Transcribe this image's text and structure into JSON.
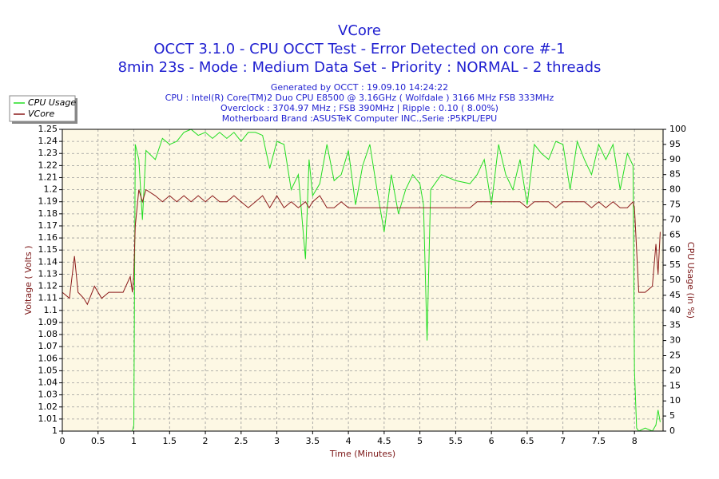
{
  "chart_data": {
    "type": "line",
    "title": "VCore",
    "title_lines": [
      "OCCT 3.1.0 - CPU OCCT Test - Error Detected on core #-1",
      "8min 23s - Mode : Medium Data Set - Priority : NORMAL - 2 threads"
    ],
    "subtitle": [
      "Generated by OCCT : 19.09.10 14:24:22",
      "CPU : Intel(R) Core(TM)2 Duo CPU E8500 @ 3.16GHz ( Wolfdale ) 3166 MHz FSB 333MHz",
      "Overclock : 3704.97 MHz ; FSB 390MHz | Ripple : 0.10 ( 8.00%)",
      "Motherboard Brand :ASUSTeK Computer INC.,Serie :P5KPL/EPU"
    ],
    "xlabel": "Time (Minutes)",
    "ylabel": "Voltage ( Volts )",
    "y2label": "CPU Usage (in %)",
    "x": [
      0,
      0.1,
      0.17,
      0.22,
      0.3,
      0.35,
      0.45,
      0.55,
      0.65,
      0.75,
      0.85,
      0.95,
      0.98,
      1.0,
      1.02,
      1.07,
      1.12,
      1.17,
      1.3,
      1.4,
      1.5,
      1.6,
      1.7,
      1.8,
      1.9,
      2.0,
      2.1,
      2.2,
      2.3,
      2.4,
      2.5,
      2.6,
      2.7,
      2.8,
      2.9,
      3.0,
      3.1,
      3.2,
      3.3,
      3.4,
      3.45,
      3.5,
      3.6,
      3.7,
      3.8,
      3.9,
      4.0,
      4.1,
      4.2,
      4.3,
      4.4,
      4.5,
      4.6,
      4.7,
      4.8,
      4.9,
      5.0,
      5.05,
      5.1,
      5.15,
      5.3,
      5.5,
      5.7,
      5.8,
      5.9,
      6.0,
      6.1,
      6.2,
      6.3,
      6.4,
      6.5,
      6.6,
      6.7,
      6.8,
      6.9,
      7.0,
      7.1,
      7.2,
      7.3,
      7.4,
      7.5,
      7.6,
      7.7,
      7.8,
      7.9,
      7.98,
      8.0,
      8.03,
      8.06,
      8.15,
      8.25,
      8.3,
      8.33,
      8.36
    ],
    "series": [
      {
        "name": "CPU Usage",
        "color": "#22dd22",
        "axis": "y2",
        "values": [
          0,
          0,
          0,
          0,
          0,
          0,
          0,
          0,
          0,
          0,
          0,
          0,
          0,
          2,
          95,
          90,
          70,
          93,
          90,
          97,
          95,
          96,
          99,
          100,
          98,
          99,
          97,
          99,
          97,
          99,
          96,
          99,
          99,
          98,
          87,
          96,
          95,
          80,
          85,
          57,
          90,
          78,
          82,
          95,
          83,
          85,
          93,
          75,
          88,
          95,
          80,
          66,
          85,
          72,
          80,
          85,
          82,
          75,
          30,
          80,
          85,
          83,
          82,
          85,
          90,
          75,
          95,
          85,
          80,
          90,
          75,
          95,
          92,
          90,
          96,
          95,
          80,
          96,
          90,
          85,
          95,
          90,
          95,
          80,
          92,
          88,
          20,
          1,
          0,
          1,
          0,
          2,
          7,
          3
        ]
      },
      {
        "name": "VCore",
        "color": "#8b1a1a",
        "values": [
          1.115,
          1.11,
          1.145,
          1.115,
          1.11,
          1.105,
          1.12,
          1.11,
          1.115,
          1.115,
          1.115,
          1.128,
          1.115,
          1.13,
          1.17,
          1.2,
          1.19,
          1.2,
          1.195,
          1.19,
          1.195,
          1.19,
          1.195,
          1.19,
          1.195,
          1.19,
          1.195,
          1.19,
          1.19,
          1.195,
          1.19,
          1.185,
          1.19,
          1.195,
          1.185,
          1.195,
          1.185,
          1.19,
          1.185,
          1.19,
          1.185,
          1.19,
          1.195,
          1.185,
          1.185,
          1.19,
          1.185,
          1.185,
          1.185,
          1.185,
          1.185,
          1.185,
          1.185,
          1.185,
          1.185,
          1.185,
          1.185,
          1.185,
          1.185,
          1.185,
          1.185,
          1.185,
          1.185,
          1.19,
          1.19,
          1.19,
          1.19,
          1.19,
          1.19,
          1.19,
          1.185,
          1.19,
          1.19,
          1.19,
          1.185,
          1.19,
          1.19,
          1.19,
          1.19,
          1.185,
          1.19,
          1.185,
          1.19,
          1.185,
          1.185,
          1.19,
          1.185,
          1.15,
          1.115,
          1.115,
          1.12,
          1.155,
          1.13,
          1.165
        ]
      }
    ],
    "xlim": [
      0,
      8.4
    ],
    "xticks": [
      0,
      0.5,
      1,
      1.5,
      2,
      2.5,
      3,
      3.5,
      4,
      4.5,
      5,
      5.5,
      6,
      6.5,
      7,
      7.5,
      8
    ],
    "ylim": [
      1,
      1.25
    ],
    "yticks": [
      1,
      1.01,
      1.02,
      1.03,
      1.04,
      1.05,
      1.06,
      1.07,
      1.08,
      1.09,
      1.1,
      1.11,
      1.12,
      1.13,
      1.14,
      1.15,
      1.16,
      1.17,
      1.18,
      1.19,
      1.2,
      1.21,
      1.22,
      1.23,
      1.24,
      1.25
    ],
    "y2lim": [
      0,
      100
    ],
    "y2ticks": [
      0,
      5,
      10,
      15,
      20,
      25,
      30,
      35,
      40,
      45,
      50,
      55,
      60,
      65,
      70,
      75,
      80,
      85,
      90,
      95,
      100
    ],
    "grid": true,
    "legend": "top-left"
  }
}
